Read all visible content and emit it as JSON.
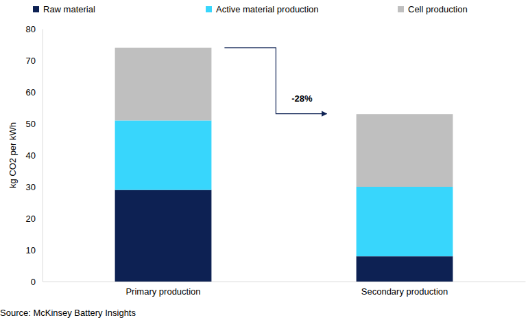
{
  "chart_data": {
    "type": "bar",
    "stacked": true,
    "categories": [
      "Primary production",
      "Secondary production"
    ],
    "series": [
      {
        "name": "Raw material",
        "color": "#0d2153",
        "values": [
          29,
          8
        ]
      },
      {
        "name": "Active material production",
        "color": "#38d6fc",
        "values": [
          22,
          22
        ]
      },
      {
        "name": "Cell production",
        "color": "#bfbfbf",
        "values": [
          23,
          23
        ]
      }
    ],
    "ylim": [
      0,
      80
    ],
    "yticks": [
      0,
      10,
      20,
      30,
      40,
      50,
      60,
      70,
      80
    ],
    "y_label": "kg CO2 per kWh",
    "annotation": "-28%",
    "source": "Source: McKinsey Battery Insights",
    "legend": "top",
    "grid": false
  }
}
